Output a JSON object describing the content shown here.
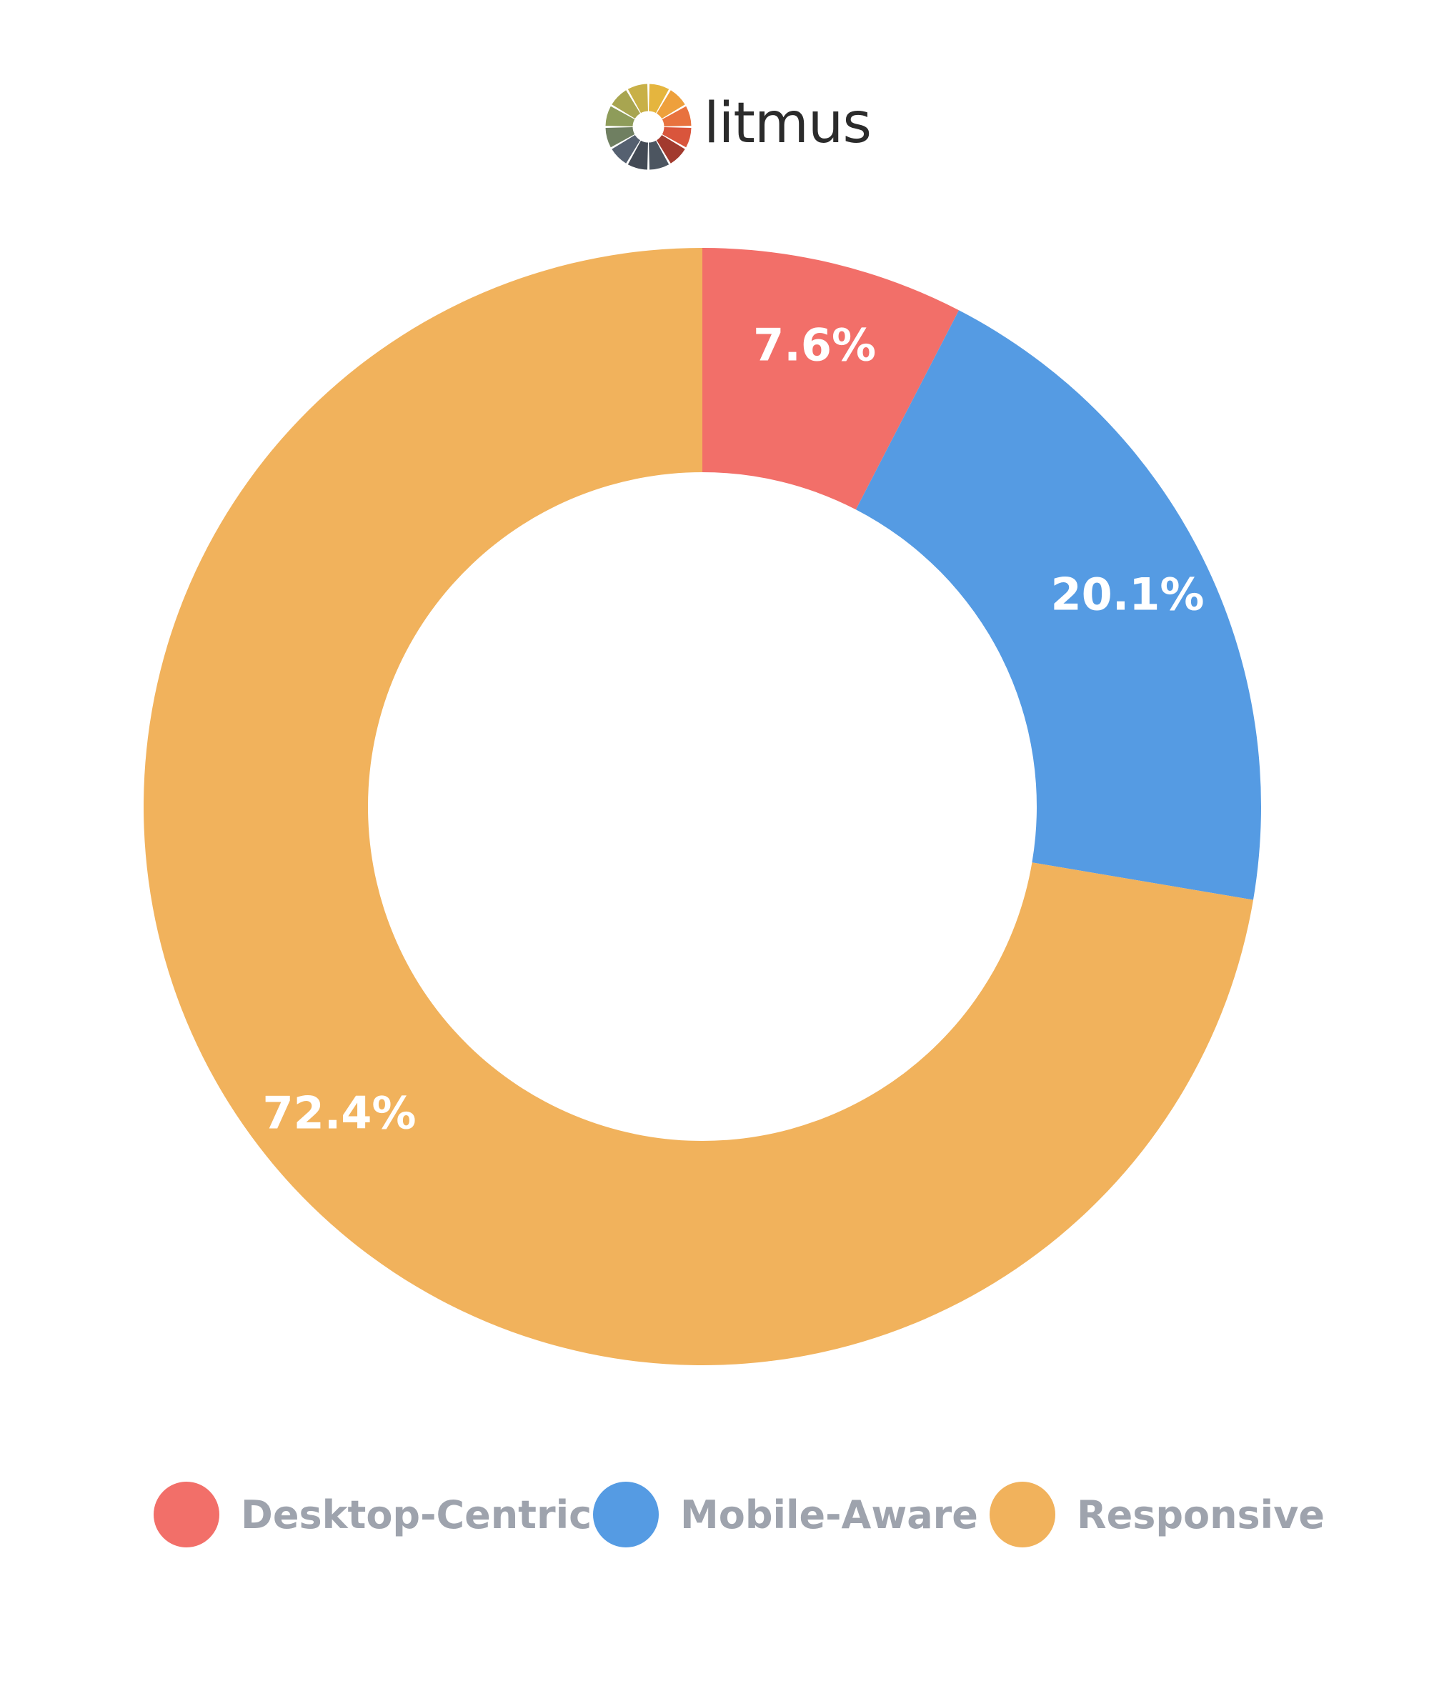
{
  "logo": {
    "text": "litmus",
    "wheel_colors": [
      "#e5b53e",
      "#eea03c",
      "#e8723e",
      "#d9553c",
      "#a23a2e",
      "#4c5560",
      "#434a55",
      "#556070",
      "#6f7f61",
      "#8e9c5a",
      "#a8a550",
      "#c8b047"
    ]
  },
  "chart_data": {
    "type": "pie",
    "style": "donut",
    "categories": [
      "Desktop-Centric",
      "Mobile-Aware",
      "Responsive"
    ],
    "values": [
      7.6,
      20.1,
      72.4
    ],
    "data_labels": [
      "7.6%",
      "20.1%",
      "72.4%"
    ],
    "colors": [
      "#f26f69",
      "#559be3",
      "#f1b25c"
    ],
    "start_angle": "12 o'clock",
    "direction": "clockwise",
    "legend": "bottom"
  }
}
